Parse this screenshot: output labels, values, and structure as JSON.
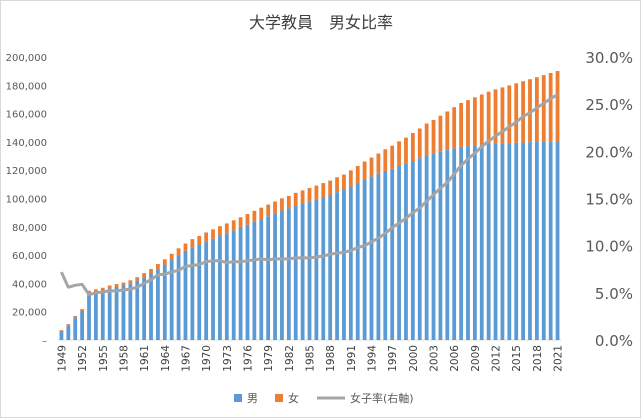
{
  "chart_data": {
    "type": "bar",
    "stacked": true,
    "title": "大学教員　男女比率",
    "years": [
      1949,
      1950,
      1951,
      1952,
      1953,
      1954,
      1955,
      1956,
      1957,
      1958,
      1959,
      1960,
      1961,
      1962,
      1963,
      1964,
      1965,
      1966,
      1967,
      1968,
      1969,
      1970,
      1971,
      1972,
      1973,
      1974,
      1975,
      1976,
      1977,
      1978,
      1979,
      1980,
      1981,
      1982,
      1983,
      1984,
      1985,
      1986,
      1987,
      1988,
      1989,
      1990,
      1991,
      1992,
      1993,
      1994,
      1995,
      1996,
      1997,
      1998,
      1999,
      2000,
      2001,
      2002,
      2003,
      2004,
      2005,
      2006,
      2007,
      2008,
      2009,
      2010,
      2011,
      2012,
      2013,
      2014,
      2015,
      2016,
      2017,
      2018,
      2019,
      2020,
      2021
    ],
    "x_tick_labels": [
      "1949",
      "1952",
      "1955",
      "1958",
      "1961",
      "1964",
      "1967",
      "1970",
      "1973",
      "1976",
      "1979",
      "1982",
      "1985",
      "1988",
      "1991",
      "1994",
      "1997",
      "2000",
      "2003",
      "2006",
      "2009",
      "2012",
      "2015",
      "2018",
      "2021"
    ],
    "series": [
      {
        "name": "男",
        "color": "#5b9bd5",
        "axis": "left",
        "values": [
          6500,
          10500,
          16000,
          20500,
          33000,
          34000,
          35000,
          36500,
          37500,
          38500,
          40000,
          42000,
          44500,
          47000,
          50000,
          53000,
          56500,
          60000,
          63000,
          65500,
          67500,
          69500,
          71500,
          73500,
          75500,
          77500,
          79500,
          81500,
          83500,
          85500,
          87500,
          89500,
          91500,
          93000,
          95000,
          96500,
          98000,
          99500,
          101000,
          102500,
          104500,
          106000,
          108500,
          111000,
          113500,
          115500,
          117500,
          119500,
          121000,
          123000,
          124500,
          126500,
          128500,
          130500,
          131500,
          133000,
          134500,
          135500,
          136500,
          137000,
          137500,
          138000,
          138500,
          138800,
          139000,
          139200,
          139400,
          139600,
          139800,
          140000,
          140200,
          140400,
          140600
        ]
      },
      {
        "name": "女",
        "color": "#ed7d31",
        "axis": "left",
        "values": [
          500,
          700,
          1000,
          1300,
          1800,
          1800,
          1900,
          2000,
          2000,
          2100,
          2200,
          2400,
          2800,
          3200,
          3700,
          4000,
          4400,
          4800,
          5200,
          5800,
          6000,
          6500,
          6700,
          6900,
          6900,
          7100,
          7200,
          7500,
          7800,
          8000,
          8200,
          8400,
          8600,
          8800,
          9000,
          9200,
          9400,
          9600,
          9900,
          10200,
          10500,
          10900,
          11400,
          12000,
          12600,
          13400,
          14300,
          15300,
          16300,
          17400,
          18500,
          19800,
          21000,
          22500,
          24000,
          25500,
          27000,
          29000,
          31000,
          32500,
          34000,
          35500,
          37000,
          38300,
          39500,
          40700,
          42000,
          43300,
          44500,
          45700,
          47000,
          48300,
          49500
        ]
      },
      {
        "name": "女子率(右軸)",
        "color": "#a5a5a5",
        "axis": "right",
        "type": "line",
        "values": [
          7.2,
          5.6,
          5.8,
          5.9,
          4.8,
          5.0,
          5.1,
          5.2,
          5.2,
          5.3,
          5.4,
          5.6,
          6.0,
          6.4,
          6.9,
          7.0,
          7.2,
          7.4,
          7.8,
          7.9,
          8.0,
          8.3,
          8.4,
          8.4,
          8.2,
          8.3,
          8.3,
          8.4,
          8.5,
          8.6,
          8.5,
          8.6,
          8.6,
          8.6,
          8.7,
          8.7,
          8.7,
          8.8,
          8.9,
          9.1,
          9.2,
          9.3,
          9.5,
          9.8,
          10.0,
          10.4,
          10.8,
          11.3,
          11.9,
          12.4,
          12.9,
          13.5,
          14.0,
          14.7,
          15.4,
          16.1,
          16.7,
          17.6,
          18.5,
          19.2,
          19.8,
          20.5,
          21.1,
          21.6,
          22.1,
          22.6,
          23.1,
          23.7,
          24.1,
          24.6,
          25.1,
          25.6,
          26.0
        ]
      }
    ],
    "y_left": {
      "ylim": [
        0,
        200000
      ],
      "ticks": [
        "–",
        "20,000",
        "40,000",
        "60,000",
        "80,000",
        "100,000",
        "120,000",
        "140,000",
        "160,000",
        "180,000",
        "200,000"
      ]
    },
    "y_right": {
      "ylim": [
        0,
        30
      ],
      "ticks": [
        "0.0%",
        "5.0%",
        "10.0%",
        "15.0%",
        "20.0%",
        "25.0%",
        "30.0%"
      ]
    },
    "legend_position": "bottom",
    "grid": false
  }
}
